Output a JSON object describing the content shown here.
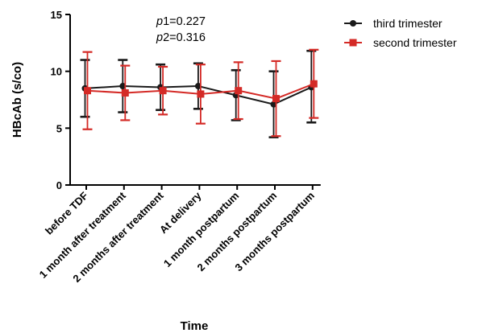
{
  "chart_data": {
    "type": "line",
    "xlabel": "Time",
    "ylabel": "HBcAb (s/co)",
    "ylim": [
      0,
      15
    ],
    "yticks": [
      0,
      5,
      10,
      15
    ],
    "grid": false,
    "legend_position": "top-right",
    "categories": [
      "before TDF",
      "1 month after treatment",
      "2 months after treatment",
      "At delivery",
      "1 month postpartum",
      "2 months postpartum",
      "3 months postpartum"
    ],
    "annotations": [
      {
        "italic": "p",
        "text": "1=0.227"
      },
      {
        "italic": "p",
        "text": "2=0.316"
      }
    ],
    "series": [
      {
        "name": "third trimester",
        "color": "#1a1a1a",
        "marker": "circle",
        "values": [
          8.5,
          8.7,
          8.6,
          8.7,
          7.9,
          7.1,
          8.6
        ],
        "error_low": [
          6.0,
          6.4,
          6.6,
          6.7,
          5.7,
          4.2,
          5.5
        ],
        "error_high": [
          11.0,
          11.0,
          10.6,
          10.7,
          10.1,
          10.0,
          11.8
        ]
      },
      {
        "name": "second trimester",
        "color": "#d42a26",
        "marker": "square",
        "values": [
          8.3,
          8.1,
          8.3,
          8.0,
          8.3,
          7.6,
          8.9
        ],
        "error_low": [
          4.9,
          5.7,
          6.2,
          5.4,
          5.8,
          4.3,
          5.9
        ],
        "error_high": [
          11.7,
          10.5,
          10.4,
          10.6,
          10.8,
          10.9,
          11.9
        ]
      }
    ]
  }
}
